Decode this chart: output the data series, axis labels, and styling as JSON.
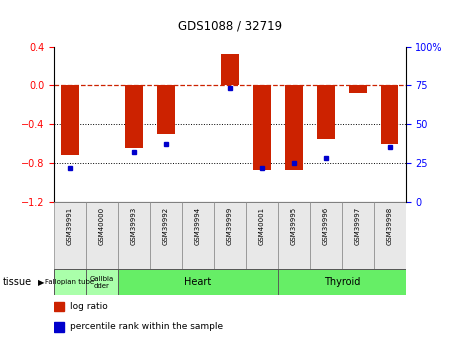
{
  "title": "GDS1088 / 32719",
  "samples": [
    "GSM39991",
    "GSM40000",
    "GSM39993",
    "GSM39992",
    "GSM39994",
    "GSM39999",
    "GSM40001",
    "GSM39995",
    "GSM39996",
    "GSM39997",
    "GSM39998"
  ],
  "log_ratios": [
    -0.72,
    0.0,
    -0.65,
    -0.5,
    0.0,
    0.32,
    -0.87,
    -0.87,
    -0.55,
    -0.08,
    -0.6
  ],
  "percentile_ranks": [
    22,
    0,
    32,
    37,
    0,
    73,
    22,
    25,
    28,
    0,
    35
  ],
  "bar_color": "#cc2200",
  "dot_color": "#0000cc",
  "ylim_left": [
    -1.2,
    0.4
  ],
  "ylim_right": [
    0,
    100
  ],
  "dotted_lines": [
    -0.4,
    -0.8
  ],
  "right_ticks": [
    0,
    25,
    50,
    75,
    100
  ],
  "left_ticks": [
    -1.2,
    -0.8,
    -0.4,
    0.0,
    0.4
  ],
  "tissue_defs": [
    {
      "label": "Fallopian tube",
      "start": 0,
      "end": 0,
      "color": "#aaffaa",
      "fontsize": 5.0
    },
    {
      "label": "Gallbla\ndder",
      "start": 1,
      "end": 1,
      "color": "#aaffaa",
      "fontsize": 5.0
    },
    {
      "label": "Heart",
      "start": 2,
      "end": 6,
      "color": "#66ee66",
      "fontsize": 7
    },
    {
      "label": "Thyroid",
      "start": 7,
      "end": 10,
      "color": "#66ee66",
      "fontsize": 7
    }
  ],
  "tissue_row_label": "tissue",
  "legend_items": [
    {
      "color": "#cc2200",
      "label": "log ratio"
    },
    {
      "color": "#0000cc",
      "label": "percentile rank within the sample"
    }
  ],
  "bar_width": 0.55
}
